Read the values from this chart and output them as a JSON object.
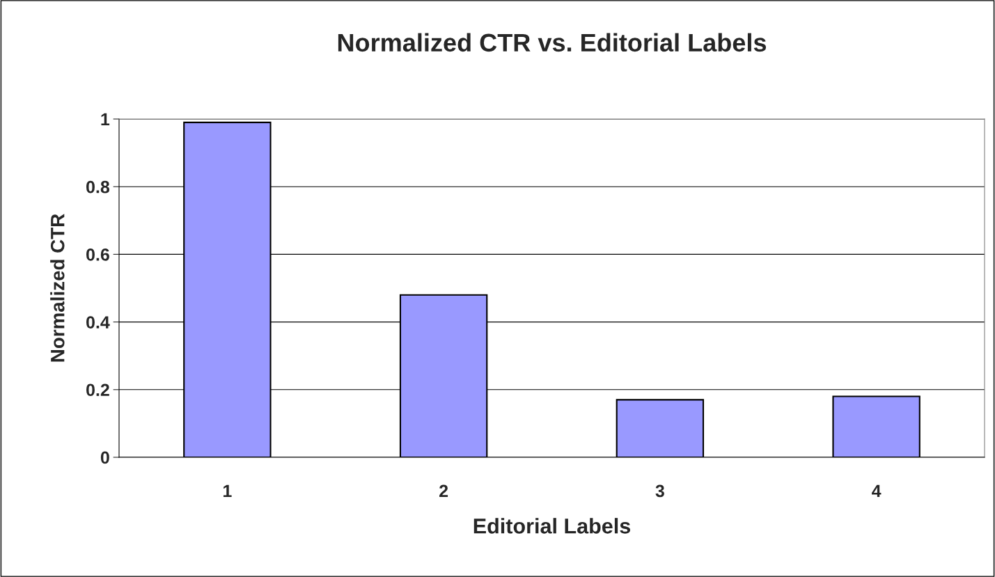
{
  "chart_data": {
    "type": "bar",
    "title": "Normalized CTR vs. Editorial Labels",
    "xlabel": "Editorial Labels",
    "ylabel": "Normalized CTR",
    "categories": [
      "1",
      "2",
      "3",
      "4"
    ],
    "values": [
      0.99,
      0.48,
      0.17,
      0.18
    ],
    "color": "#9999ff",
    "ylim": [
      0,
      1
    ],
    "yticks": [
      0,
      0.2,
      0.4,
      0.6,
      0.8,
      1
    ],
    "grid": "y",
    "legend": false
  }
}
